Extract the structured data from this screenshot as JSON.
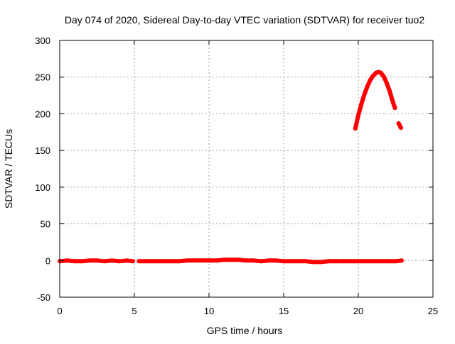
{
  "chart_data": {
    "type": "scatter",
    "title": "Day 074 of 2020, Sidereal Day-to-day VTEC variation (SDTVAR) for receiver tuo2",
    "xlabel": "GPS time / hours",
    "ylabel": "SDTVAR / TECUs",
    "xlim": [
      0,
      25
    ],
    "ylim": [
      -50,
      300
    ],
    "xticks": [
      0,
      5,
      10,
      15,
      20,
      25
    ],
    "yticks": [
      -50,
      0,
      50,
      100,
      150,
      200,
      250,
      300
    ],
    "grid": true,
    "series": [
      {
        "name": "SDTVAR",
        "color": "#ff0000",
        "segments": [
          {
            "x": [
              0,
              0.5,
              1.0,
              1.5,
              2.0,
              2.5,
              3.0,
              3.5,
              4.0,
              4.5,
              4.9
            ],
            "y": [
              -1,
              0,
              -1,
              -1,
              0,
              0,
              -1,
              0,
              -1,
              0,
              -1
            ]
          },
          {
            "x": [
              5.3,
              6.0,
              6.5,
              7.0,
              7.5,
              8.0,
              8.5,
              9.0,
              9.5,
              10.0,
              10.5,
              11.0,
              11.5,
              12.0,
              12.5,
              13.0,
              13.5,
              14.0,
              14.5,
              15.0,
              15.5,
              16.0,
              16.5,
              17.0,
              17.5,
              18.0,
              18.5,
              19.0,
              19.5,
              20.0,
              20.5,
              21.0,
              21.5,
              22.0,
              22.5,
              22.9
            ],
            "y": [
              -1,
              -1,
              -1,
              -1,
              -1,
              -1,
              0,
              0,
              0,
              0,
              0,
              1,
              1,
              1,
              0,
              0,
              -1,
              0,
              0,
              -1,
              -1,
              -1,
              -1,
              -2,
              -2,
              -1,
              -1,
              -1,
              -1,
              -1,
              -1,
              -1,
              -1,
              -1,
              -1,
              0
            ]
          },
          {
            "x": [
              19.8,
              20.0,
              20.2,
              20.4,
              20.6,
              20.8,
              21.0,
              21.2,
              21.35,
              21.5,
              21.7,
              21.9,
              22.1,
              22.3,
              22.45
            ],
            "y": [
              180,
              198,
              213,
              226,
              237,
              246,
              252,
              256,
              257,
              256,
              251,
              242,
              231,
              217,
              208
            ]
          },
          {
            "x": [
              22.7,
              22.75,
              22.8,
              22.85
            ],
            "y": [
              187,
              185,
              183,
              181
            ]
          }
        ]
      }
    ]
  }
}
